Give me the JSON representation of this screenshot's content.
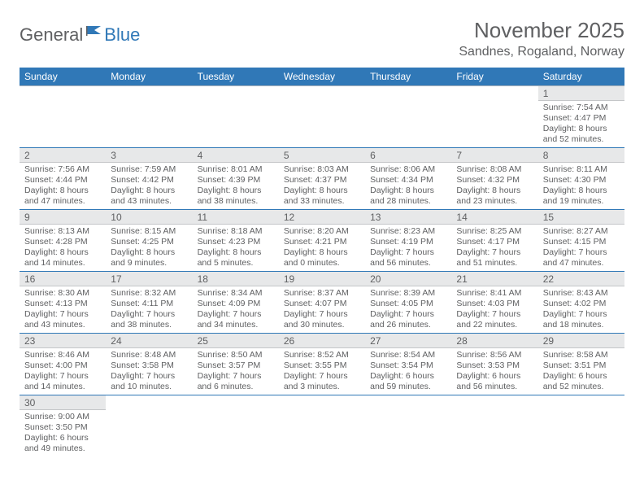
{
  "logo": {
    "general": "General",
    "blue": "Blue"
  },
  "header": {
    "title": "November 2025",
    "subtitle": "Sandnes, Rogaland, Norway"
  },
  "colors": {
    "header_bg": "#3078b7",
    "header_fg": "#ffffff",
    "text": "#5f6062",
    "daynum_bg": "#e7e8e9",
    "row_border": "#3078b7"
  },
  "weekdays": [
    "Sunday",
    "Monday",
    "Tuesday",
    "Wednesday",
    "Thursday",
    "Friday",
    "Saturday"
  ],
  "weeks": [
    [
      null,
      null,
      null,
      null,
      null,
      null,
      {
        "n": "1",
        "sr": "Sunrise: 7:54 AM",
        "ss": "Sunset: 4:47 PM",
        "dl": "Daylight: 8 hours and 52 minutes."
      }
    ],
    [
      {
        "n": "2",
        "sr": "Sunrise: 7:56 AM",
        "ss": "Sunset: 4:44 PM",
        "dl": "Daylight: 8 hours and 47 minutes."
      },
      {
        "n": "3",
        "sr": "Sunrise: 7:59 AM",
        "ss": "Sunset: 4:42 PM",
        "dl": "Daylight: 8 hours and 43 minutes."
      },
      {
        "n": "4",
        "sr": "Sunrise: 8:01 AM",
        "ss": "Sunset: 4:39 PM",
        "dl": "Daylight: 8 hours and 38 minutes."
      },
      {
        "n": "5",
        "sr": "Sunrise: 8:03 AM",
        "ss": "Sunset: 4:37 PM",
        "dl": "Daylight: 8 hours and 33 minutes."
      },
      {
        "n": "6",
        "sr": "Sunrise: 8:06 AM",
        "ss": "Sunset: 4:34 PM",
        "dl": "Daylight: 8 hours and 28 minutes."
      },
      {
        "n": "7",
        "sr": "Sunrise: 8:08 AM",
        "ss": "Sunset: 4:32 PM",
        "dl": "Daylight: 8 hours and 23 minutes."
      },
      {
        "n": "8",
        "sr": "Sunrise: 8:11 AM",
        "ss": "Sunset: 4:30 PM",
        "dl": "Daylight: 8 hours and 19 minutes."
      }
    ],
    [
      {
        "n": "9",
        "sr": "Sunrise: 8:13 AM",
        "ss": "Sunset: 4:28 PM",
        "dl": "Daylight: 8 hours and 14 minutes."
      },
      {
        "n": "10",
        "sr": "Sunrise: 8:15 AM",
        "ss": "Sunset: 4:25 PM",
        "dl": "Daylight: 8 hours and 9 minutes."
      },
      {
        "n": "11",
        "sr": "Sunrise: 8:18 AM",
        "ss": "Sunset: 4:23 PM",
        "dl": "Daylight: 8 hours and 5 minutes."
      },
      {
        "n": "12",
        "sr": "Sunrise: 8:20 AM",
        "ss": "Sunset: 4:21 PM",
        "dl": "Daylight: 8 hours and 0 minutes."
      },
      {
        "n": "13",
        "sr": "Sunrise: 8:23 AM",
        "ss": "Sunset: 4:19 PM",
        "dl": "Daylight: 7 hours and 56 minutes."
      },
      {
        "n": "14",
        "sr": "Sunrise: 8:25 AM",
        "ss": "Sunset: 4:17 PM",
        "dl": "Daylight: 7 hours and 51 minutes."
      },
      {
        "n": "15",
        "sr": "Sunrise: 8:27 AM",
        "ss": "Sunset: 4:15 PM",
        "dl": "Daylight: 7 hours and 47 minutes."
      }
    ],
    [
      {
        "n": "16",
        "sr": "Sunrise: 8:30 AM",
        "ss": "Sunset: 4:13 PM",
        "dl": "Daylight: 7 hours and 43 minutes."
      },
      {
        "n": "17",
        "sr": "Sunrise: 8:32 AM",
        "ss": "Sunset: 4:11 PM",
        "dl": "Daylight: 7 hours and 38 minutes."
      },
      {
        "n": "18",
        "sr": "Sunrise: 8:34 AM",
        "ss": "Sunset: 4:09 PM",
        "dl": "Daylight: 7 hours and 34 minutes."
      },
      {
        "n": "19",
        "sr": "Sunrise: 8:37 AM",
        "ss": "Sunset: 4:07 PM",
        "dl": "Daylight: 7 hours and 30 minutes."
      },
      {
        "n": "20",
        "sr": "Sunrise: 8:39 AM",
        "ss": "Sunset: 4:05 PM",
        "dl": "Daylight: 7 hours and 26 minutes."
      },
      {
        "n": "21",
        "sr": "Sunrise: 8:41 AM",
        "ss": "Sunset: 4:03 PM",
        "dl": "Daylight: 7 hours and 22 minutes."
      },
      {
        "n": "22",
        "sr": "Sunrise: 8:43 AM",
        "ss": "Sunset: 4:02 PM",
        "dl": "Daylight: 7 hours and 18 minutes."
      }
    ],
    [
      {
        "n": "23",
        "sr": "Sunrise: 8:46 AM",
        "ss": "Sunset: 4:00 PM",
        "dl": "Daylight: 7 hours and 14 minutes."
      },
      {
        "n": "24",
        "sr": "Sunrise: 8:48 AM",
        "ss": "Sunset: 3:58 PM",
        "dl": "Daylight: 7 hours and 10 minutes."
      },
      {
        "n": "25",
        "sr": "Sunrise: 8:50 AM",
        "ss": "Sunset: 3:57 PM",
        "dl": "Daylight: 7 hours and 6 minutes."
      },
      {
        "n": "26",
        "sr": "Sunrise: 8:52 AM",
        "ss": "Sunset: 3:55 PM",
        "dl": "Daylight: 7 hours and 3 minutes."
      },
      {
        "n": "27",
        "sr": "Sunrise: 8:54 AM",
        "ss": "Sunset: 3:54 PM",
        "dl": "Daylight: 6 hours and 59 minutes."
      },
      {
        "n": "28",
        "sr": "Sunrise: 8:56 AM",
        "ss": "Sunset: 3:53 PM",
        "dl": "Daylight: 6 hours and 56 minutes."
      },
      {
        "n": "29",
        "sr": "Sunrise: 8:58 AM",
        "ss": "Sunset: 3:51 PM",
        "dl": "Daylight: 6 hours and 52 minutes."
      }
    ],
    [
      {
        "n": "30",
        "sr": "Sunrise: 9:00 AM",
        "ss": "Sunset: 3:50 PM",
        "dl": "Daylight: 6 hours and 49 minutes."
      },
      null,
      null,
      null,
      null,
      null,
      null
    ]
  ]
}
